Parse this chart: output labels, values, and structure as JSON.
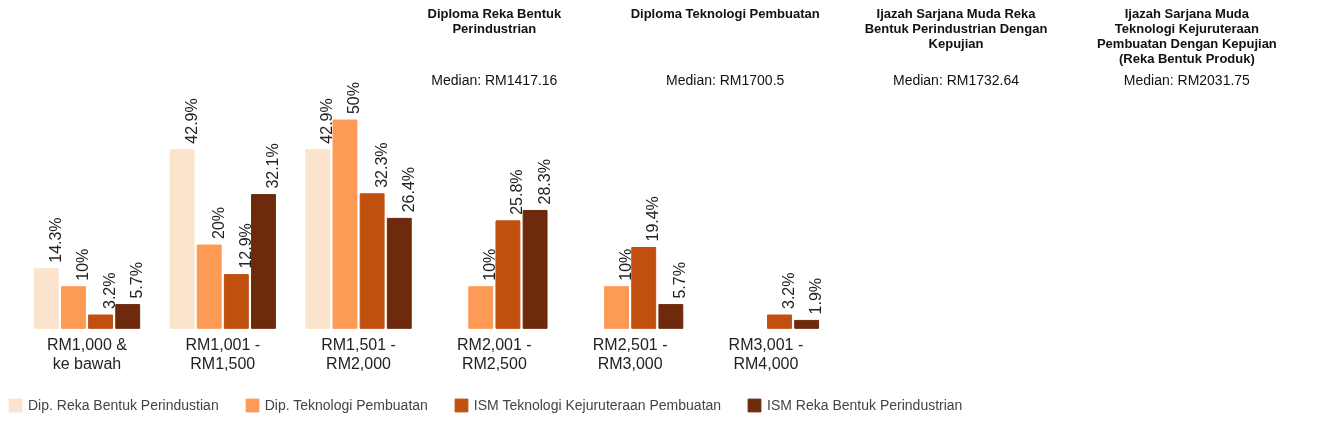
{
  "chart_data": {
    "type": "bar",
    "categories": [
      "RM1,000 & ke bawah",
      "RM1,001 - RM1,500",
      "RM1,501 - RM2,000",
      "RM2,001 - RM2,500",
      "RM2,501 - RM3,000",
      "RM3,001 - RM4,000"
    ],
    "series": [
      {
        "name": "Dip. Reka Bentuk Perindustian",
        "color": "#fbe3cc",
        "values": [
          14.3,
          42.9,
          42.9,
          null,
          null,
          null
        ],
        "value_labels": [
          "14.3%",
          "42.9%",
          "42.9%",
          null,
          null,
          null
        ]
      },
      {
        "name": "Dip. Teknologi Pembuatan",
        "color": "#fd9a55",
        "values": [
          10,
          20,
          50,
          10,
          10,
          null
        ],
        "value_labels": [
          "10%",
          "20%",
          "50%",
          "10%",
          "10%",
          null
        ]
      },
      {
        "name": "ISM Teknologi Kejuruteraan Pembuatan",
        "color": "#c0500f",
        "values": [
          3.2,
          12.9,
          32.3,
          25.8,
          19.4,
          3.2
        ],
        "value_labels": [
          "3.2%",
          "12.9%",
          "32.3%",
          "25.8%",
          "19.4%",
          "3.2%"
        ]
      },
      {
        "name": "ISM Reka Bentuk Perindustrian",
        "color": "#6e2a0c",
        "values": [
          5.7,
          32.1,
          26.4,
          28.3,
          5.7,
          1.9
        ],
        "value_labels": [
          "5.7%",
          "32.1%",
          "26.4%",
          "28.3%",
          "5.7%",
          "1.9%"
        ]
      }
    ],
    "legend": "bottom",
    "annotations": [
      "Diploma Reka Bentuk Perindustrian",
      "Median: RM1417.16",
      "Diploma Teknologi Pembuatan",
      "Median: RM1700.5",
      "Ijazah Sarjana Muda Reka Bentuk Perindustrian Dengan Kepujian",
      "Median: RM1732.64",
      "Ijazah Sarjana Muda Teknologi Kejuruteraan Pembuatan Dengan Kepujian (Reka Bentuk Produk)",
      "Median: RM2031.75"
    ]
  }
}
